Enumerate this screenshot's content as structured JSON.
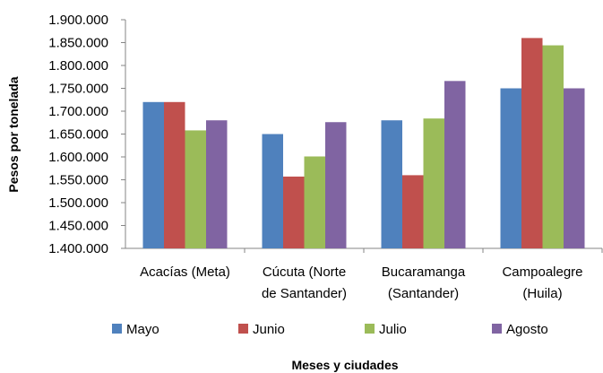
{
  "chart_data": {
    "type": "bar",
    "title": "",
    "xlabel": "Meses y ciudades",
    "ylabel": "Pesos por tonelada",
    "ylim": [
      1400000,
      1900000
    ],
    "y_ticks": [
      "1.400.000",
      "1.450.000",
      "1.500.000",
      "1.550.000",
      "1.600.000",
      "1.650.000",
      "1.700.000",
      "1.750.000",
      "1.800.000",
      "1.850.000",
      "1.900.000"
    ],
    "y_tick_values": [
      1400000,
      1450000,
      1500000,
      1550000,
      1600000,
      1650000,
      1700000,
      1750000,
      1800000,
      1850000,
      1900000
    ],
    "categories": [
      [
        "Acacías (Meta)"
      ],
      [
        "Cúcuta (Norte",
        "de Santander)"
      ],
      [
        "Bucaramanga",
        "(Santander)"
      ],
      [
        "Campoalegre",
        "(Huila)"
      ]
    ],
    "series": [
      {
        "name": "Mayo",
        "color": "#4F81BD",
        "values": [
          1720000,
          1650000,
          1680000,
          1750000
        ]
      },
      {
        "name": "Junio",
        "color": "#C0504D",
        "values": [
          1720000,
          1557000,
          1560000,
          1860000
        ]
      },
      {
        "name": "Julio",
        "color": "#9BBB59",
        "values": [
          1658000,
          1601000,
          1684000,
          1844000
        ]
      },
      {
        "name": "Agosto",
        "color": "#8064A2",
        "values": [
          1680000,
          1676000,
          1766000,
          1750000
        ]
      }
    ],
    "grid": false,
    "legend_position": "bottom"
  }
}
